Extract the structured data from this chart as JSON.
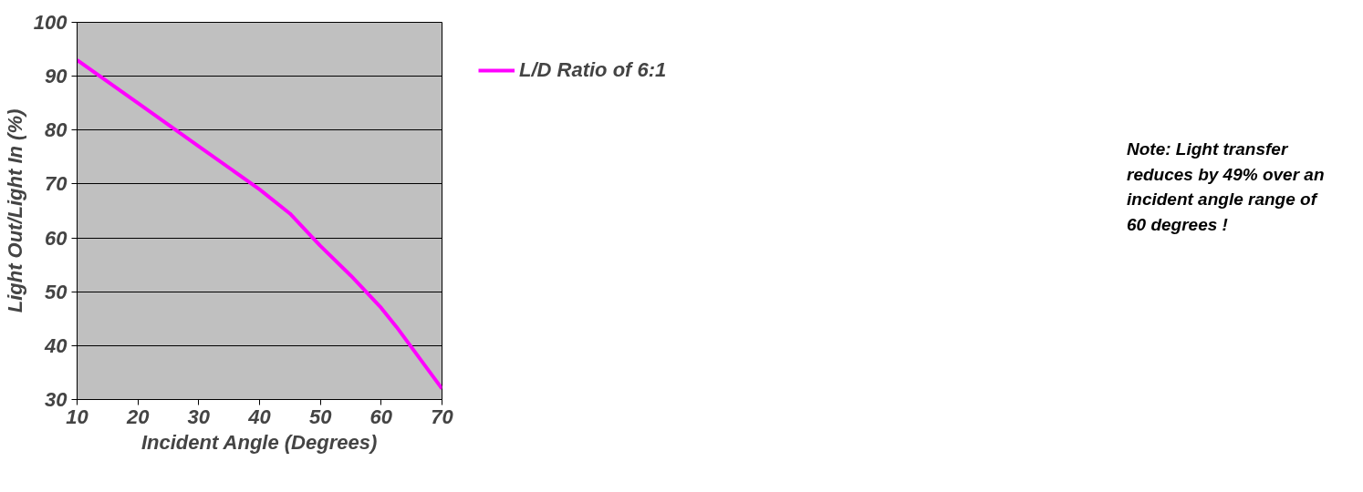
{
  "chart_data": {
    "type": "line",
    "xlabel": "Incident Angle (Degrees)",
    "ylabel": "Light Out/Light In (%)",
    "x": [
      10,
      20,
      30,
      40,
      45,
      50,
      55,
      60,
      62.5,
      70
    ],
    "series": [
      {
        "name": "L/D Ratio of 6:1",
        "color": "#ff00ff",
        "values": [
          93,
          85,
          77,
          69,
          64.5,
          58.5,
          53,
          47,
          43.5,
          32
        ]
      }
    ],
    "xlim": [
      10,
      70
    ],
    "xticks": [
      10,
      20,
      30,
      40,
      50,
      60,
      70
    ],
    "ylim": [
      30,
      100
    ],
    "yticks": [
      30,
      40,
      50,
      60,
      70,
      80,
      90,
      100
    ],
    "grid": "y",
    "legend": "right",
    "marker": "none",
    "line_style": "solid",
    "annotations": [
      "Note: Light transfer reduces by 49% over an incident angle range of 60 degrees !"
    ]
  }
}
